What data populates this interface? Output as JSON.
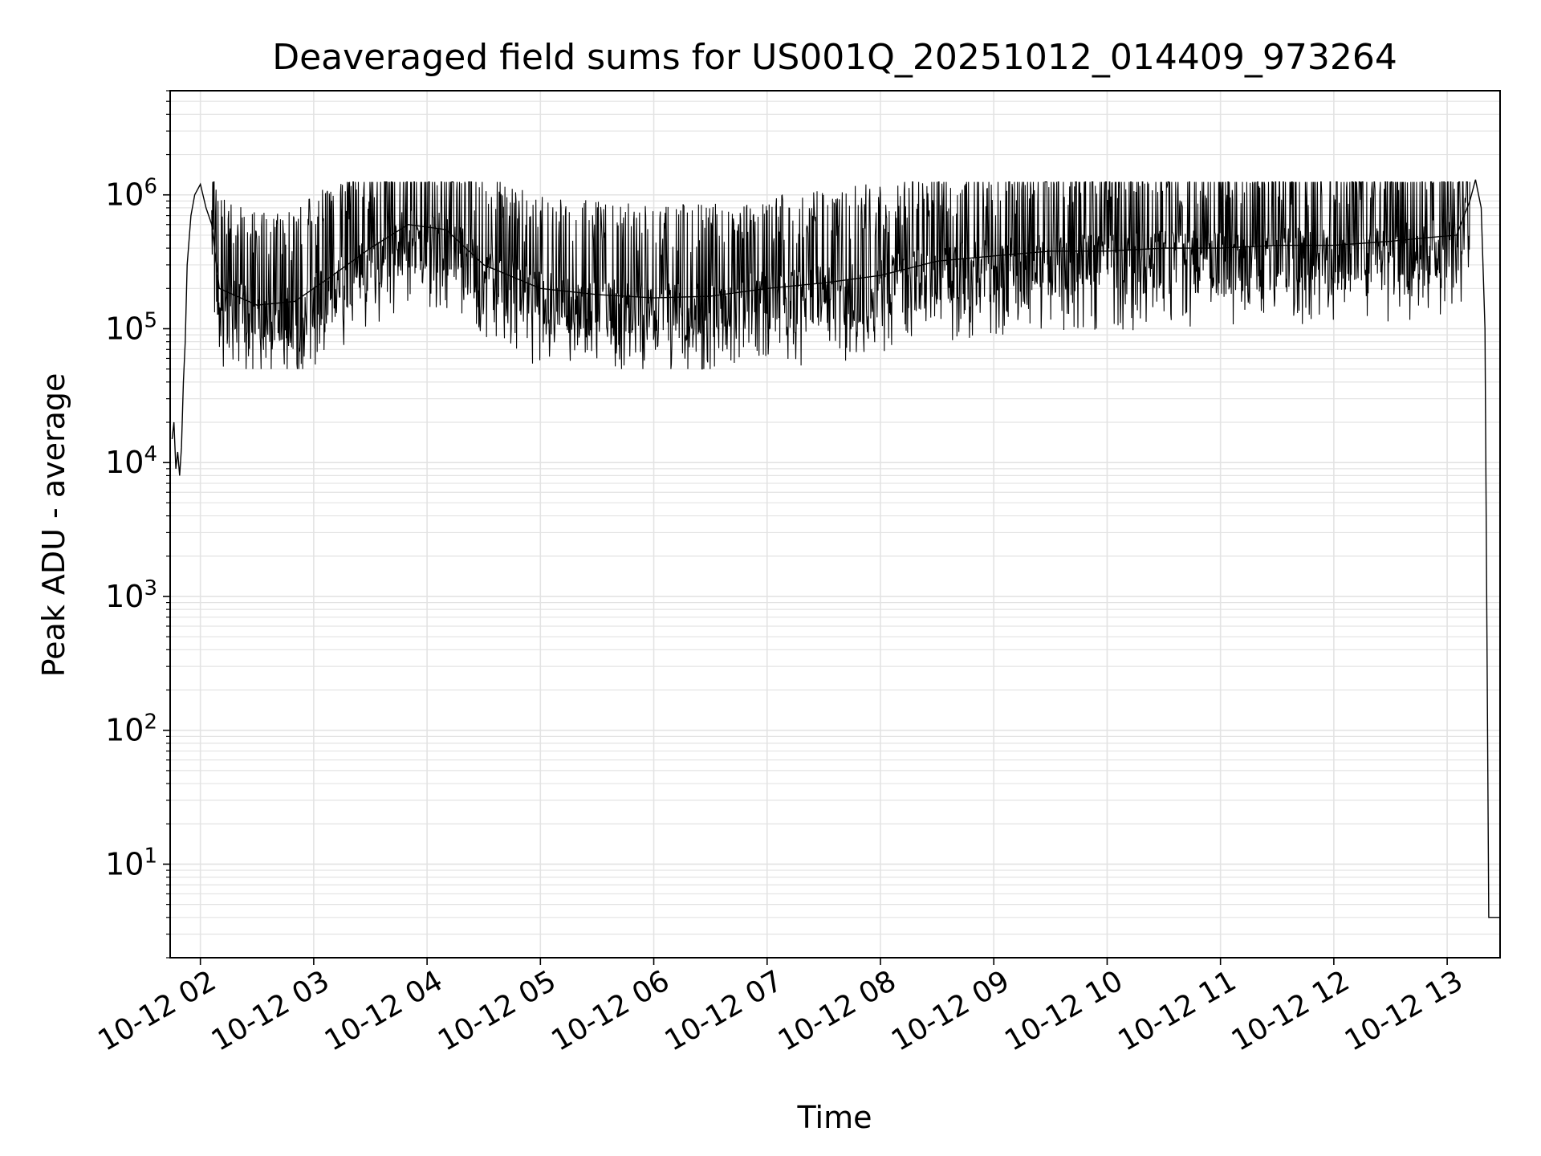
{
  "chart_data": {
    "type": "line",
    "title": "Deaveraged field sums for US001Q_20251012_014409_973264",
    "xlabel": "Time",
    "ylabel": "Peak ADU - average",
    "yscale": "log",
    "xlim": [
      "2025-10-12 01:44",
      "2025-10-12 13:28"
    ],
    "ylim": [
      2,
      6000000
    ],
    "grid": true,
    "line_color": "#000000",
    "grid_color": "#e3e3e3",
    "xticks": [
      {
        "time": "2025-10-12 02:00",
        "label": "10-12 02"
      },
      {
        "time": "2025-10-12 03:00",
        "label": "10-12 03"
      },
      {
        "time": "2025-10-12 04:00",
        "label": "10-12 04"
      },
      {
        "time": "2025-10-12 05:00",
        "label": "10-12 05"
      },
      {
        "time": "2025-10-12 06:00",
        "label": "10-12 06"
      },
      {
        "time": "2025-10-12 07:00",
        "label": "10-12 07"
      },
      {
        "time": "2025-10-12 08:00",
        "label": "10-12 08"
      },
      {
        "time": "2025-10-12 09:00",
        "label": "10-12 09"
      },
      {
        "time": "2025-10-12 10:00",
        "label": "10-12 10"
      },
      {
        "time": "2025-10-12 11:00",
        "label": "10-12 11"
      },
      {
        "time": "2025-10-12 12:00",
        "label": "10-12 12"
      },
      {
        "time": "2025-10-12 13:00",
        "label": "10-12 13"
      }
    ],
    "yticks": [
      {
        "value": 10,
        "base": "10",
        "exp": "1"
      },
      {
        "value": 100,
        "base": "10",
        "exp": "2"
      },
      {
        "value": 1000,
        "base": "10",
        "exp": "3"
      },
      {
        "value": 10000,
        "base": "10",
        "exp": "4"
      },
      {
        "value": 100000,
        "base": "10",
        "exp": "5"
      },
      {
        "value": 1000000,
        "base": "10",
        "exp": "6"
      }
    ],
    "series": [
      {
        "x": [
          "2025-10-12 01:45",
          "2025-10-12 01:46",
          "2025-10-12 01:47",
          "2025-10-12 01:48",
          "2025-10-12 01:49",
          "2025-10-12 01:50",
          "2025-10-12 01:51",
          "2025-10-12 01:52",
          "2025-10-12 01:53",
          "2025-10-12 01:55",
          "2025-10-12 01:57",
          "2025-10-12 02:00",
          "2025-10-12 02:03",
          "2025-10-12 02:06",
          "2025-10-12 02:08",
          "2025-10-12 02:10",
          "2025-10-12 02:30",
          "2025-10-12 02:50",
          "2025-10-12 03:10",
          "2025-10-12 03:30",
          "2025-10-12 03:50",
          "2025-10-12 04:10",
          "2025-10-12 04:30",
          "2025-10-12 05:00",
          "2025-10-12 05:30",
          "2025-10-12 06:00",
          "2025-10-12 06:30",
          "2025-10-12 07:00",
          "2025-10-12 07:30",
          "2025-10-12 08:00",
          "2025-10-12 08:30",
          "2025-10-12 09:00",
          "2025-10-12 09:30",
          "2025-10-12 10:00",
          "2025-10-12 10:30",
          "2025-10-12 11:00",
          "2025-10-12 11:30",
          "2025-10-12 12:00",
          "2025-10-12 12:30",
          "2025-10-12 12:50",
          "2025-10-12 13:05",
          "2025-10-12 13:12",
          "2025-10-12 13:15",
          "2025-10-12 13:18",
          "2025-10-12 13:20",
          "2025-10-12 13:22",
          "2025-10-12 13:28"
        ],
        "y": [
          15000,
          20000,
          9000,
          12000,
          8000,
          13000,
          40000,
          80000,
          300000,
          700000,
          1000000,
          1200000,
          800000,
          600000,
          350000,
          200000,
          150000,
          160000,
          250000,
          400000,
          600000,
          550000,
          300000,
          200000,
          180000,
          170000,
          175000,
          200000,
          220000,
          250000,
          320000,
          350000,
          380000,
          380000,
          400000,
          400000,
          420000,
          420000,
          450000,
          480000,
          500000,
          900000,
          1300000,
          800000,
          100000,
          4,
          4
        ]
      }
    ]
  }
}
